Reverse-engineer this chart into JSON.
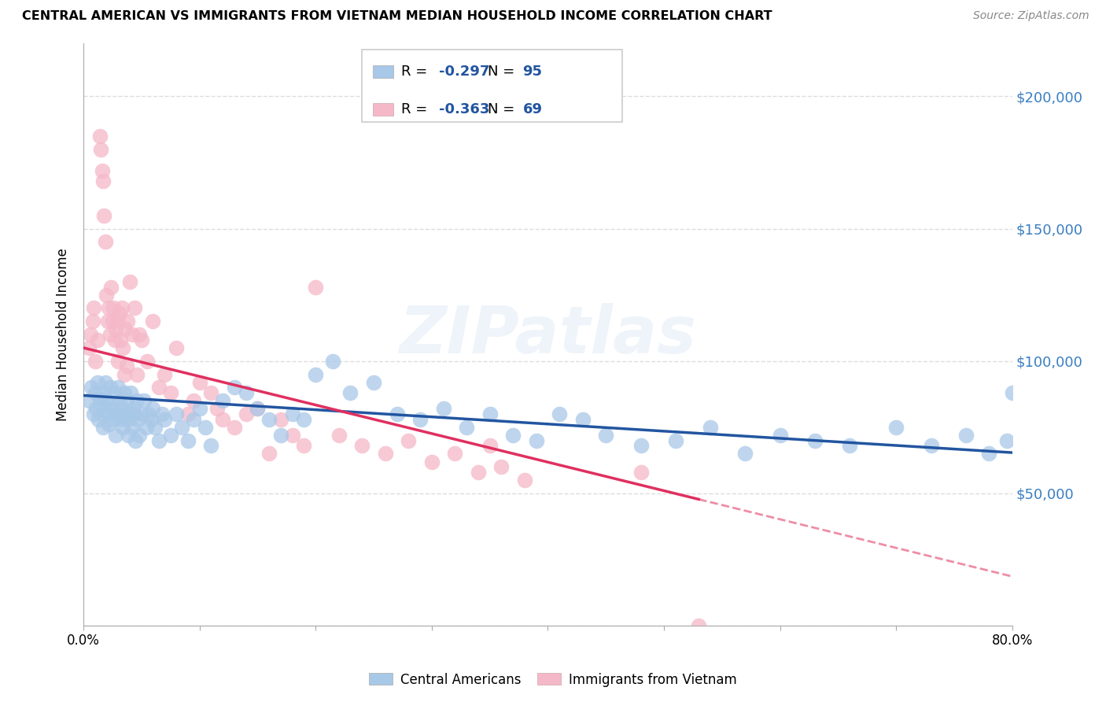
{
  "title": "CENTRAL AMERICAN VS IMMIGRANTS FROM VIETNAM MEDIAN HOUSEHOLD INCOME CORRELATION CHART",
  "source": "Source: ZipAtlas.com",
  "ylabel": "Median Household Income",
  "xlim": [
    0.0,
    0.8
  ],
  "ylim": [
    0,
    220000
  ],
  "yticks": [
    0,
    50000,
    100000,
    150000,
    200000
  ],
  "ytick_labels": [
    "",
    "$50,000",
    "$100,000",
    "$150,000",
    "$200,000"
  ],
  "xticks": [
    0.0,
    0.1,
    0.2,
    0.3,
    0.4,
    0.5,
    0.6,
    0.7,
    0.8
  ],
  "bg_color": "#ffffff",
  "grid_color": "#dddddd",
  "blue_color": "#a8c8e8",
  "pink_color": "#f5b8c8",
  "blue_line_color": "#2255a0",
  "pink_line_color": "#e03060",
  "R_blue": -0.297,
  "N_blue": 95,
  "R_pink": -0.363,
  "N_pink": 69,
  "watermark": "ZIPatlas",
  "legend_label_blue": "Central Americans",
  "legend_label_pink": "Immigrants from Vietnam",
  "blue_scatter_x": [
    0.005,
    0.007,
    0.009,
    0.01,
    0.011,
    0.012,
    0.013,
    0.014,
    0.015,
    0.016,
    0.017,
    0.018,
    0.019,
    0.02,
    0.021,
    0.022,
    0.023,
    0.024,
    0.025,
    0.026,
    0.027,
    0.028,
    0.029,
    0.03,
    0.031,
    0.032,
    0.033,
    0.034,
    0.035,
    0.036,
    0.037,
    0.038,
    0.039,
    0.04,
    0.041,
    0.042,
    0.043,
    0.044,
    0.045,
    0.046,
    0.047,
    0.048,
    0.05,
    0.052,
    0.054,
    0.056,
    0.058,
    0.06,
    0.062,
    0.065,
    0.068,
    0.07,
    0.075,
    0.08,
    0.085,
    0.09,
    0.095,
    0.1,
    0.105,
    0.11,
    0.12,
    0.13,
    0.14,
    0.15,
    0.16,
    0.17,
    0.18,
    0.19,
    0.2,
    0.215,
    0.23,
    0.25,
    0.27,
    0.29,
    0.31,
    0.33,
    0.35,
    0.37,
    0.39,
    0.41,
    0.43,
    0.45,
    0.48,
    0.51,
    0.54,
    0.57,
    0.6,
    0.63,
    0.66,
    0.7,
    0.73,
    0.76,
    0.78,
    0.795,
    0.8
  ],
  "blue_scatter_y": [
    85000,
    90000,
    80000,
    88000,
    82000,
    92000,
    78000,
    86000,
    84000,
    80000,
    75000,
    88000,
    92000,
    85000,
    80000,
    76000,
    90000,
    82000,
    78000,
    84000,
    88000,
    72000,
    80000,
    90000,
    85000,
    78000,
    82000,
    75000,
    88000,
    80000,
    85000,
    78000,
    72000,
    80000,
    88000,
    75000,
    82000,
    80000,
    70000,
    85000,
    78000,
    72000,
    80000,
    85000,
    75000,
    80000,
    78000,
    82000,
    75000,
    70000,
    80000,
    78000,
    72000,
    80000,
    75000,
    70000,
    78000,
    82000,
    75000,
    68000,
    85000,
    90000,
    88000,
    82000,
    78000,
    72000,
    80000,
    78000,
    95000,
    100000,
    88000,
    92000,
    80000,
    78000,
    82000,
    75000,
    80000,
    72000,
    70000,
    80000,
    78000,
    72000,
    68000,
    70000,
    75000,
    65000,
    72000,
    70000,
    68000,
    75000,
    68000,
    72000,
    65000,
    70000,
    88000
  ],
  "pink_scatter_x": [
    0.005,
    0.006,
    0.008,
    0.009,
    0.01,
    0.012,
    0.014,
    0.015,
    0.016,
    0.017,
    0.018,
    0.019,
    0.02,
    0.021,
    0.022,
    0.023,
    0.024,
    0.025,
    0.026,
    0.027,
    0.028,
    0.029,
    0.03,
    0.031,
    0.032,
    0.033,
    0.034,
    0.035,
    0.036,
    0.037,
    0.038,
    0.04,
    0.042,
    0.044,
    0.046,
    0.048,
    0.05,
    0.055,
    0.06,
    0.065,
    0.07,
    0.075,
    0.08,
    0.09,
    0.095,
    0.1,
    0.11,
    0.115,
    0.12,
    0.13,
    0.14,
    0.15,
    0.16,
    0.17,
    0.18,
    0.19,
    0.2,
    0.22,
    0.24,
    0.26,
    0.28,
    0.3,
    0.32,
    0.34,
    0.35,
    0.36,
    0.38,
    0.48,
    0.53
  ],
  "pink_scatter_y": [
    105000,
    110000,
    115000,
    120000,
    100000,
    108000,
    185000,
    180000,
    172000,
    168000,
    155000,
    145000,
    125000,
    115000,
    120000,
    110000,
    128000,
    115000,
    120000,
    108000,
    112000,
    115000,
    100000,
    118000,
    108000,
    120000,
    105000,
    95000,
    112000,
    98000,
    115000,
    130000,
    110000,
    120000,
    95000,
    110000,
    108000,
    100000,
    115000,
    90000,
    95000,
    88000,
    105000,
    80000,
    85000,
    92000,
    88000,
    82000,
    78000,
    75000,
    80000,
    82000,
    65000,
    78000,
    72000,
    68000,
    128000,
    72000,
    68000,
    65000,
    70000,
    62000,
    65000,
    58000,
    68000,
    60000,
    55000,
    58000,
    0
  ]
}
